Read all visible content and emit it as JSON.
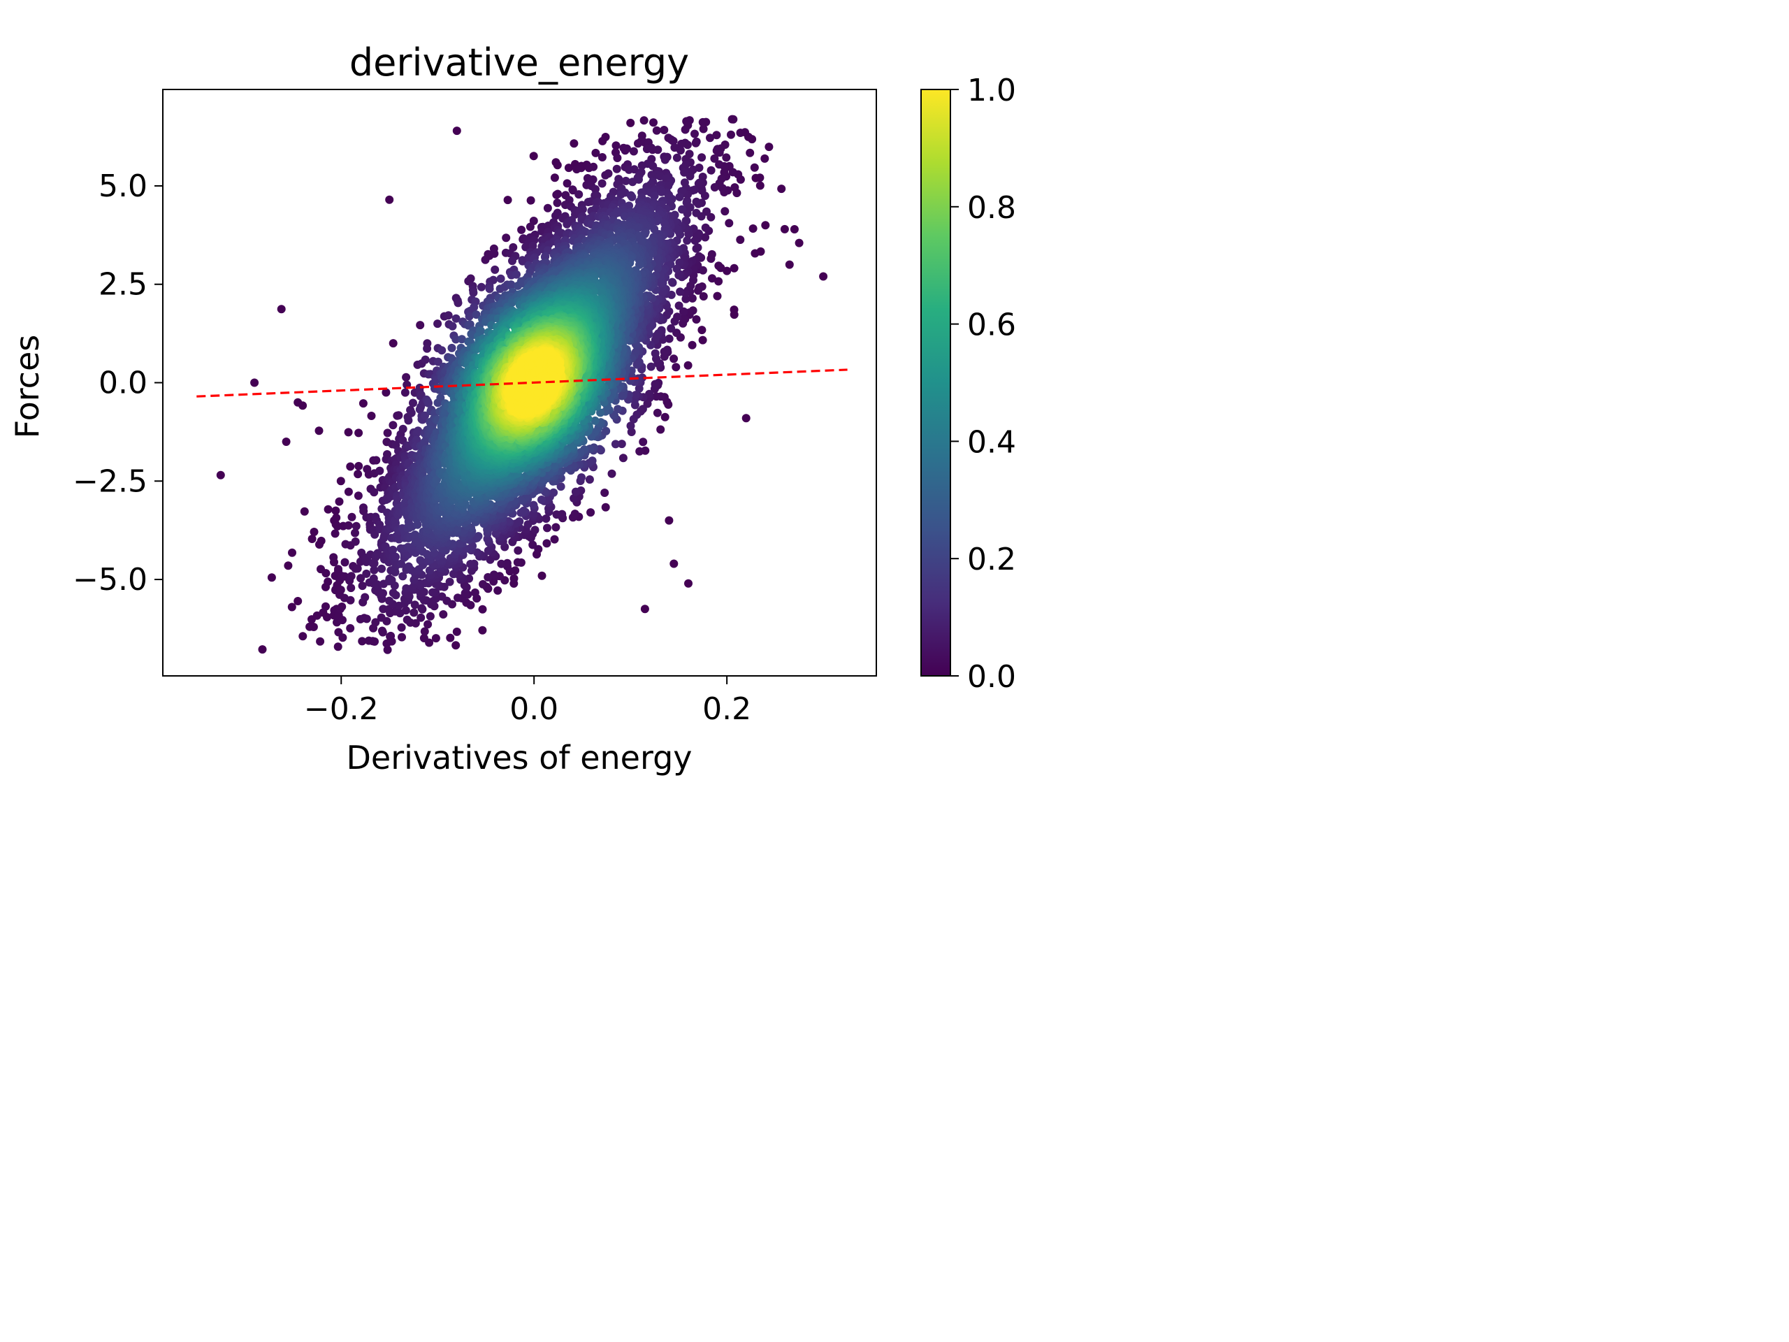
{
  "chart_data": {
    "type": "scatter",
    "title": "derivative_energy",
    "xlabel": "Derivatives of energy",
    "ylabel": "Forces",
    "xlim": [
      -0.385,
      0.355
    ],
    "ylim": [
      -7.45,
      7.45
    ],
    "xticks": [
      -0.2,
      0.0,
      0.2
    ],
    "xtick_labels": [
      "−0.2",
      "0.0",
      "0.2"
    ],
    "yticks": [
      -5.0,
      -2.5,
      0.0,
      2.5,
      5.0
    ],
    "ytick_labels": [
      "−5.0",
      "−2.5",
      "0.0",
      "2.5",
      "5.0"
    ],
    "grid": false,
    "point_color_encoding": "density (viridis colormap)",
    "colorbar": {
      "range": [
        0.0,
        1.0
      ],
      "ticks": [
        0.0,
        0.2,
        0.4,
        0.6,
        0.8,
        1.0
      ],
      "tick_labels": [
        "0.0",
        "0.2",
        "0.4",
        "0.6",
        "0.8",
        "1.0"
      ],
      "colormap": "viridis"
    },
    "fit_line": {
      "style": "dashed",
      "color": "#ff0000",
      "points": [
        [
          -0.35,
          -0.35
        ],
        [
          0.325,
          0.33
        ]
      ]
    },
    "distribution": {
      "center": [
        0.0,
        0.0
      ],
      "x_spread": 0.08,
      "y_spread": 2.6,
      "correlation": 0.78,
      "x_range": [
        -0.33,
        0.3
      ],
      "y_range": [
        -6.8,
        6.7
      ]
    },
    "outliers": [
      [
        -0.325,
        -2.35
      ],
      [
        -0.29,
        0.0
      ],
      [
        -0.262,
        1.87
      ],
      [
        -0.257,
        -1.5
      ],
      [
        -0.245,
        -0.5
      ],
      [
        -0.24,
        -0.58
      ],
      [
        -0.223,
        -1.22
      ],
      [
        -0.15,
        4.65
      ],
      [
        -0.272,
        -4.95
      ],
      [
        -0.255,
        -4.65
      ],
      [
        -0.245,
        -5.55
      ],
      [
        0.115,
        -5.75
      ],
      [
        0.145,
        -4.6
      ],
      [
        0.16,
        -5.1
      ],
      [
        0.3,
        2.7
      ],
      [
        0.275,
        3.55
      ],
      [
        0.23,
        5.2
      ],
      [
        0.26,
        3.9
      ],
      [
        0.24,
        4.0
      ],
      [
        0.22,
        -0.9
      ],
      [
        0.265,
        3.0
      ],
      [
        0.14,
        -3.5
      ],
      [
        -0.08,
        6.4
      ],
      [
        0.1,
        6.6
      ]
    ]
  }
}
